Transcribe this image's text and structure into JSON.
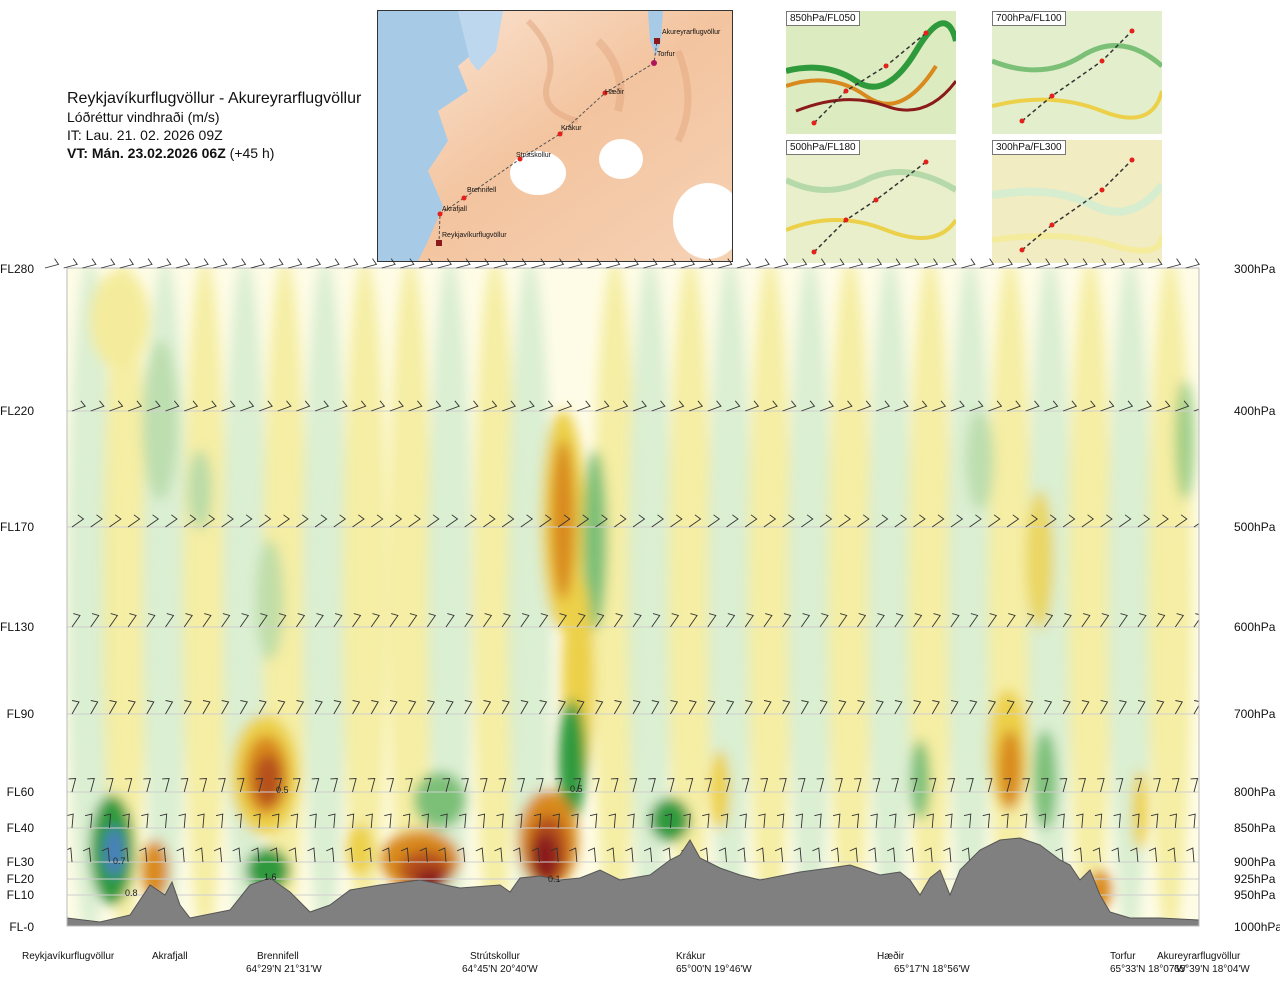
{
  "header": {
    "route": "Reykjavíkurflugvöllur - Akureyrarflugvöllur",
    "quantity": "Lóðréttur vindhraði (m/s)",
    "issue_time": "IT: Lau. 21. 02. 2026 09Z",
    "valid_time_prefix": "VT:",
    "valid_time": "Mán. 23.02.2026 06Z",
    "lead": "(+45 h)"
  },
  "map": {
    "waypoints": [
      "Akureyrarflugvöllur",
      "Torfur",
      "Hæðir",
      "Krákur",
      "Strútskollur",
      "Brennifell",
      "Akrafjall",
      "Reykjavíkurflugvöllur"
    ]
  },
  "mini_maps": [
    {
      "label": "850hPa/FL050"
    },
    {
      "label": "700hPa/FL100"
    },
    {
      "label": "500hPa/FL180"
    },
    {
      "label": "300hPa/FL300"
    }
  ],
  "chart_data": {
    "type": "heatmap",
    "title": "Lóðréttur vindhraði (m/s)",
    "left_axis_labels": [
      "FL280",
      "FL220",
      "FL170",
      "FL130",
      "FL90",
      "FL60",
      "FL40",
      "FL30",
      "FL20",
      "FL10",
      "FL-0"
    ],
    "right_axis_labels": [
      "300hPa",
      "400hPa",
      "500hPa",
      "600hPa",
      "700hPa",
      "800hPa",
      "850hPa",
      "900hPa",
      "925hPa",
      "950hPa",
      "1000hPa"
    ],
    "pressure_levels_hPa": [
      300,
      400,
      500,
      600,
      700,
      800,
      850,
      900,
      925,
      950,
      1000
    ],
    "stations": [
      {
        "name": "Reykjavíkurflugvöllur",
        "coord": ""
      },
      {
        "name": "Akrafjall",
        "coord": ""
      },
      {
        "name": "Brennifell",
        "coord": "64°29'N 21°31'W"
      },
      {
        "name": "Strútskollur",
        "coord": "64°45'N 20°40'W"
      },
      {
        "name": "Krákur",
        "coord": "65°00'N 19°46'W"
      },
      {
        "name": "Hæðir",
        "coord": "65°17'N 18°56'W"
      },
      {
        "name": "Torfur",
        "coord": "65°33'N 18°07'W"
      },
      {
        "name": "Akureyrarflugvöllur",
        "coord": "65°39'N 18°04'W"
      }
    ],
    "colors": {
      "strong_down": "#8b1a1a",
      "down_3": "#b5501e",
      "down_2": "#d98a1e",
      "down_1": "#ecd04a",
      "weak_down": "#f4ec9c",
      "neutral": "#fefce6",
      "weak_up": "#d7edcf",
      "up_1": "#b5d9a8",
      "up_2": "#7cc078",
      "up_3": "#2f9a3c",
      "strong_up": "#4a7fc0",
      "terrain": "#808080"
    },
    "annotations": [
      {
        "text": "0.7",
        "near": "Reykjavíkurflugvöllur"
      },
      {
        "text": "0.8",
        "near": "Reykjavíkurflugvöllur"
      },
      {
        "text": "0.5",
        "near": "Brennifell"
      },
      {
        "text": "0.5",
        "near": "Strútskollur"
      },
      {
        "text": "1.6",
        "near": "Brennifell"
      },
      {
        "text": "0.1",
        "near": "Strútskollur"
      }
    ]
  }
}
